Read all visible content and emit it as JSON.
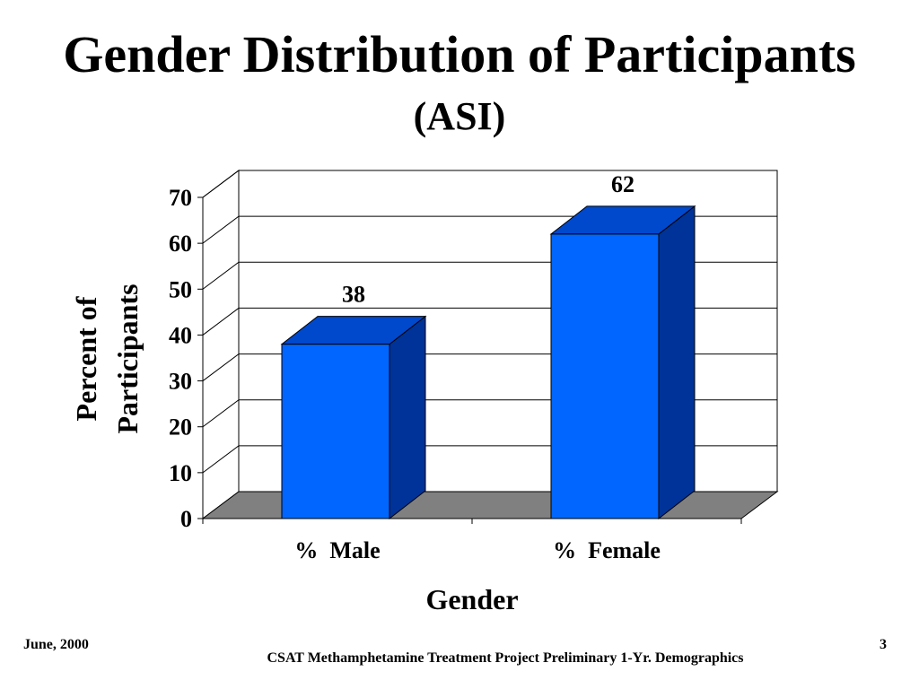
{
  "slide": {
    "title": "Gender Distribution of Participants",
    "subtitle": "(ASI)"
  },
  "footer": {
    "date": "June, 2000",
    "page": "3",
    "caption": "CSAT Methamphetamine Treatment Project Preliminary 1-Yr. Demographics"
  },
  "chart_data": {
    "type": "bar",
    "categories": [
      "%  Male",
      "%  Female"
    ],
    "values": [
      38,
      62
    ],
    "data_labels": [
      "38",
      "62"
    ],
    "xlabel": "Gender",
    "ylabel": [
      "Percent of",
      "Participants"
    ],
    "ylim": [
      0,
      70
    ],
    "yticks": [
      0,
      10,
      20,
      30,
      40,
      50,
      60,
      70
    ],
    "grid": true,
    "three_d": true,
    "colors": {
      "bar_front": "#0066ff",
      "bar_top": "#0048cc",
      "bar_side": "#003399",
      "floor": "#808080"
    }
  }
}
